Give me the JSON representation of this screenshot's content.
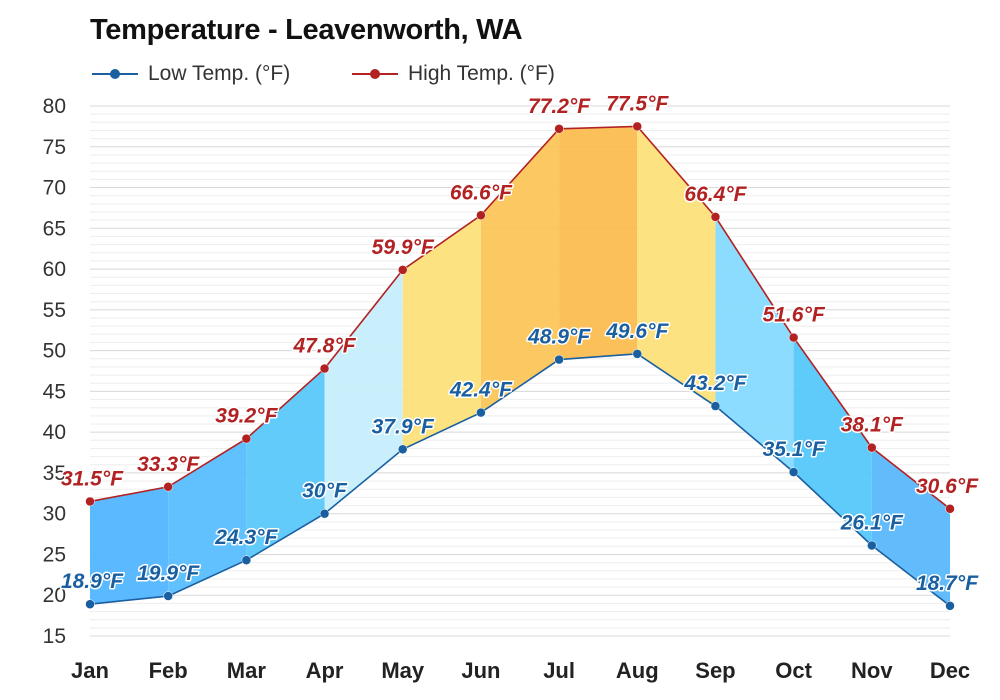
{
  "chart_data": {
    "type": "area",
    "title": "Temperature - Leavenworth, WA",
    "categories": [
      "Jan",
      "Feb",
      "Mar",
      "Apr",
      "May",
      "Jun",
      "Jul",
      "Aug",
      "Sep",
      "Oct",
      "Nov",
      "Dec"
    ],
    "series": [
      {
        "name": "Low Temp. (°F)",
        "color": "#1a5fa0",
        "values": [
          18.9,
          19.9,
          24.3,
          30,
          37.9,
          42.4,
          48.9,
          49.6,
          43.2,
          35.1,
          26.1,
          18.7
        ],
        "labels": [
          "18.9°F",
          "19.9°F",
          "24.3°F",
          "30°F",
          "37.9°F",
          "42.4°F",
          "48.9°F",
          "49.6°F",
          "43.2°F",
          "35.1°F",
          "26.1°F",
          "18.7°F"
        ]
      },
      {
        "name": "High Temp. (°F)",
        "color": "#b22222",
        "values": [
          31.5,
          33.3,
          39.2,
          47.8,
          59.9,
          66.6,
          77.2,
          77.5,
          66.4,
          51.6,
          38.1,
          30.6
        ],
        "labels": [
          "31.5°F",
          "33.3°F",
          "39.2°F",
          "47.8°F",
          "59.9°F",
          "66.6°F",
          "77.2°F",
          "77.5°F",
          "66.4°F",
          "51.6°F",
          "38.1°F",
          "30.6°F"
        ]
      }
    ],
    "ylim": [
      15,
      80
    ],
    "yticks": [
      "15",
      "20",
      "25",
      "30",
      "35",
      "40",
      "45",
      "50",
      "55",
      "60",
      "65",
      "70",
      "75",
      "80"
    ],
    "grid": true,
    "legend": "top-left",
    "band_colors": [
      "#52b6ff",
      "#58beff",
      "#5bc8fa",
      "#c6eefc",
      "#fde07a",
      "#fbc55a",
      "#fbbd50",
      "#fde07a",
      "#86daff",
      "#55c8fa",
      "#5ab8fb",
      "#5ab8fb"
    ]
  }
}
